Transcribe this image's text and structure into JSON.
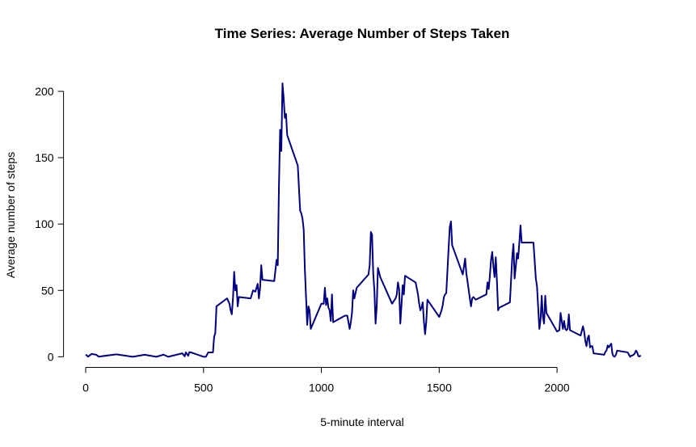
{
  "chart_data": {
    "type": "line",
    "title": "Time Series: Average Number of Steps Taken",
    "xlabel": "5-minute interval",
    "ylabel": "Average number of steps",
    "x": [
      0,
      10,
      25,
      45,
      55,
      130,
      200,
      250,
      300,
      330,
      350,
      410,
      420,
      425,
      435,
      440,
      450,
      500,
      510,
      520,
      540,
      545,
      550,
      555,
      600,
      610,
      615,
      620,
      625,
      630,
      635,
      640,
      645,
      650,
      700,
      710,
      720,
      730,
      735,
      740,
      745,
      750,
      800,
      810,
      815,
      820,
      825,
      830,
      835,
      840,
      845,
      850,
      855,
      900,
      910,
      915,
      920,
      925,
      930,
      935,
      940,
      945,
      950,
      955,
      1000,
      1010,
      1015,
      1020,
      1025,
      1030,
      1035,
      1040,
      1045,
      1050,
      1100,
      1110,
      1120,
      1125,
      1130,
      1135,
      1140,
      1150,
      1200,
      1205,
      1210,
      1215,
      1220,
      1225,
      1230,
      1235,
      1240,
      1250,
      1300,
      1315,
      1320,
      1325,
      1330,
      1335,
      1340,
      1345,
      1350,
      1355,
      1400,
      1410,
      1415,
      1420,
      1425,
      1430,
      1435,
      1440,
      1445,
      1450,
      1500,
      1510,
      1515,
      1520,
      1525,
      1530,
      1535,
      1540,
      1545,
      1550,
      1555,
      1600,
      1610,
      1615,
      1620,
      1630,
      1635,
      1640,
      1645,
      1655,
      1700,
      1705,
      1710,
      1715,
      1720,
      1725,
      1730,
      1735,
      1740,
      1745,
      1750,
      1755,
      1800,
      1805,
      1810,
      1815,
      1820,
      1825,
      1830,
      1835,
      1840,
      1845,
      1850,
      1900,
      1910,
      1915,
      1920,
      1925,
      1930,
      1935,
      1940,
      1945,
      1950,
      1955,
      2000,
      2010,
      2015,
      2020,
      2025,
      2030,
      2035,
      2040,
      2045,
      2050,
      2055,
      2100,
      2110,
      2115,
      2120,
      2125,
      2130,
      2135,
      2140,
      2145,
      2150,
      2155,
      2200,
      2205,
      2210,
      2215,
      2220,
      2225,
      2230,
      2235,
      2240,
      2245,
      2250,
      2255,
      2300,
      2310,
      2315,
      2320,
      2325,
      2330,
      2335,
      2340,
      2345,
      2350,
      2355
    ],
    "series": [
      {
        "color": "#000080",
        "values": [
          1.7,
          0.1,
          2.1,
          1.5,
          0.1,
          1.8,
          0,
          1.5,
          0,
          1.6,
          0,
          2.6,
          0.3,
          3.3,
          0.7,
          3.5,
          3.1,
          0,
          0,
          3.3,
          3.3,
          15,
          18,
          38,
          44,
          40,
          35,
          32,
          44,
          64,
          50,
          54,
          38,
          45,
          44,
          50,
          49,
          55,
          44,
          52,
          69,
          58,
          57,
          73,
          69,
          128,
          171,
          155,
          206,
          195,
          180,
          183,
          167,
          144,
          110,
          108,
          104,
          96,
          66,
          45,
          24,
          38,
          35,
          21,
          40,
          40,
          52,
          39,
          44,
          37,
          35,
          27,
          47,
          26,
          31,
          31,
          21,
          26,
          33,
          50,
          44,
          52,
          62,
          69,
          94,
          92,
          63,
          50,
          25,
          38,
          67,
          60,
          40,
          44,
          47,
          56,
          51,
          25,
          39,
          54,
          47,
          61,
          56,
          47,
          40,
          35,
          37,
          41,
          27,
          17,
          26,
          43,
          30,
          35,
          39,
          45,
          47,
          48,
          65,
          82,
          98,
          102,
          84,
          62,
          74,
          63,
          57,
          44,
          38,
          44,
          45,
          43,
          47,
          56,
          51,
          61,
          73,
          79,
          68,
          60,
          75,
          57,
          35,
          37,
          41,
          58,
          75,
          85,
          59,
          68,
          78,
          74,
          86,
          99,
          86,
          86,
          59,
          53,
          37,
          21,
          28,
          46,
          30,
          25,
          46,
          33,
          19,
          20,
          33,
          27,
          21,
          27,
          21,
          20,
          21,
          32,
          20,
          16,
          23,
          19,
          12,
          8,
          14,
          16,
          7,
          8,
          8,
          2.6,
          1.5,
          3.7,
          4.8,
          8.5,
          7.1,
          8.7,
          9.8,
          2.2,
          0.3,
          0.1,
          1.6,
          4.6,
          3.3,
          0,
          0.8,
          1,
          1.6,
          2.6,
          4.7,
          3.3,
          0.6,
          0.2,
          1.1
        ]
      }
    ],
    "xlim": [
      -94,
      2449
    ],
    "ylim": [
      -8,
      214
    ],
    "xticks": [
      0,
      500,
      1000,
      1500,
      2000
    ],
    "yticks": [
      0,
      50,
      100,
      150,
      200
    ]
  }
}
